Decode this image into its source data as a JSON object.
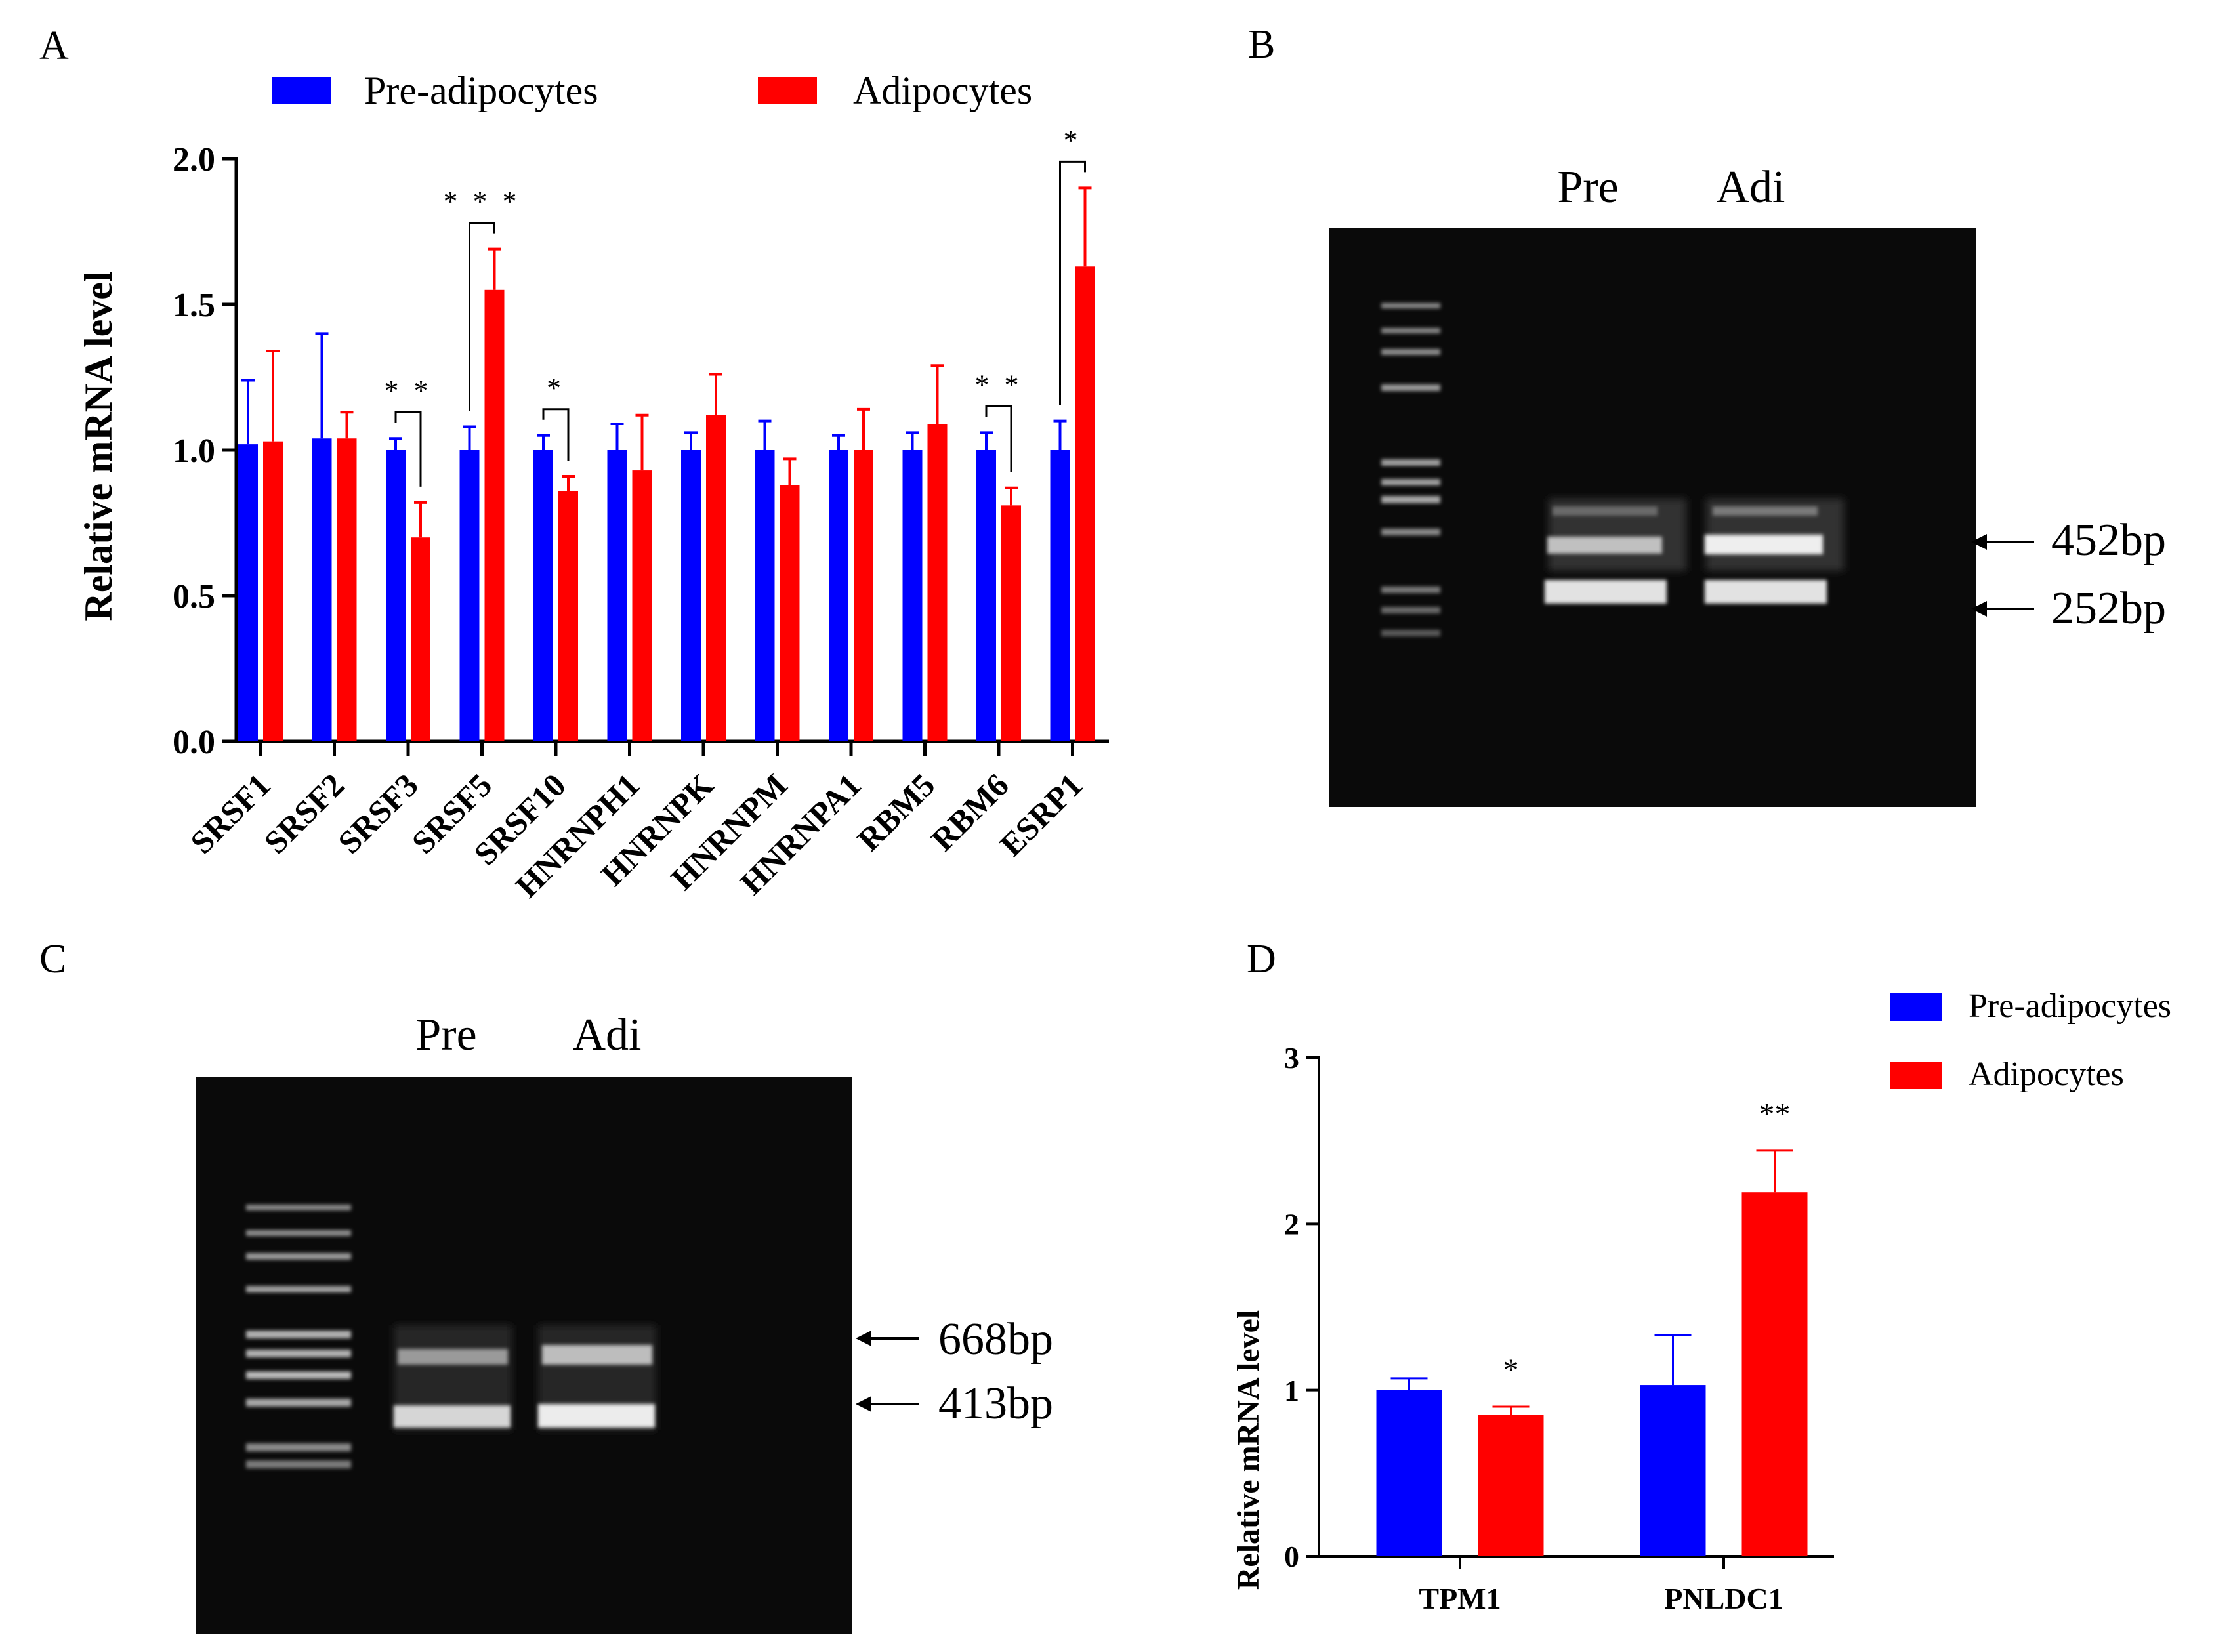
{
  "colors": {
    "pre": "#0000ff",
    "adi": "#ff0000",
    "gel_bg": "#0a0a0a"
  },
  "panel_a": {
    "letter": "A",
    "legend": [
      "Pre-adipocytes",
      "Adipocytes"
    ]
  },
  "panel_b": {
    "letter": "B",
    "lanes": [
      "Pre",
      "Adi"
    ],
    "markers": [
      "452bp",
      "252bp"
    ]
  },
  "panel_c": {
    "letter": "C",
    "lanes": [
      "Pre",
      "Adi"
    ],
    "markers": [
      "668bp",
      "413bp"
    ]
  },
  "panel_d": {
    "letter": "D",
    "legend": [
      "Pre-adipocytes",
      "Adipocytes"
    ]
  },
  "chart_data": [
    {
      "id": "A",
      "type": "bar",
      "title": "",
      "xlabel": "",
      "ylabel": "Relative mRNA level",
      "ylim": [
        0,
        2.0
      ],
      "yticks": [
        "0.0",
        "0.5",
        "1.0",
        "1.5",
        "2.0"
      ],
      "categories": [
        "SRSF1",
        "SRSF2",
        "SRSF3",
        "SRSF5",
        "SRSF10",
        "HNRNPH1",
        "HNRNPK",
        "HNRNPM",
        "HNRNPA1",
        "RBM5",
        "RBM6",
        "ESRP1"
      ],
      "series": [
        {
          "name": "Pre-adipocytes",
          "values": [
            1.02,
            1.04,
            1.0,
            1.0,
            1.0,
            1.0,
            1.0,
            1.0,
            1.0,
            1.0,
            1.0,
            1.0
          ],
          "errors": [
            0.22,
            0.36,
            0.04,
            0.08,
            0.05,
            0.09,
            0.06,
            0.1,
            0.05,
            0.06,
            0.06,
            0.1
          ]
        },
        {
          "name": "Adipocytes",
          "values": [
            1.03,
            1.04,
            0.7,
            1.55,
            0.86,
            0.93,
            1.12,
            0.88,
            1.0,
            1.09,
            0.81,
            1.63
          ],
          "errors": [
            0.31,
            0.09,
            0.12,
            0.14,
            0.05,
            0.19,
            0.14,
            0.09,
            0.14,
            0.2,
            0.06,
            0.27
          ]
        }
      ],
      "significance": [
        "",
        "",
        "* *",
        "* * *",
        "*",
        "",
        "",
        "",
        "",
        "",
        "* *",
        "*"
      ]
    },
    {
      "id": "D",
      "type": "bar",
      "title": "",
      "xlabel": "",
      "ylabel": "Relative mRNA level",
      "ylim": [
        0,
        3
      ],
      "yticks": [
        "0",
        "1",
        "2",
        "3"
      ],
      "categories": [
        "TPM1",
        "PNLDC1"
      ],
      "series": [
        {
          "name": "Pre-adipocytes",
          "values": [
            1.0,
            1.03
          ],
          "errors": [
            0.07,
            0.3
          ]
        },
        {
          "name": "Adipocytes",
          "values": [
            0.85,
            2.19
          ],
          "errors": [
            0.05,
            0.25
          ]
        }
      ],
      "significance": [
        "*",
        "**"
      ]
    }
  ]
}
